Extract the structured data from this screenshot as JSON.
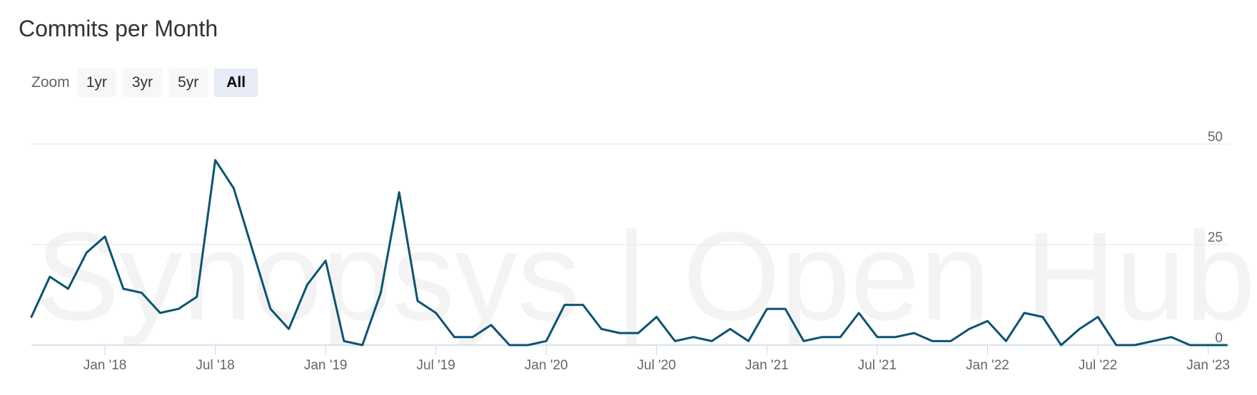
{
  "chart_title": "Commits per Month",
  "zoom": {
    "label": "Zoom",
    "options": [
      "1yr",
      "3yr",
      "5yr",
      "All"
    ],
    "selected": "All"
  },
  "watermark": "Synopsys | Open Hub",
  "colors": {
    "line": "#0b5371",
    "grid": "#e6e6e6",
    "axis": "#ccd6eb",
    "button_active": "#e6ebf5",
    "button": "#f7f7f7"
  },
  "chart_data": {
    "type": "line",
    "title": "Commits per Month",
    "x_start": "2017-09",
    "series": [
      {
        "values": [
          7,
          17,
          14,
          23,
          27,
          14,
          13,
          8,
          9,
          12,
          46,
          39,
          24,
          9,
          4,
          15,
          21,
          1,
          0,
          13,
          38,
          11,
          8,
          2,
          2,
          5,
          0,
          0,
          1,
          10,
          10,
          4,
          3,
          3,
          7,
          1,
          2,
          1,
          4,
          1,
          9,
          9,
          1,
          2,
          2,
          8,
          2,
          2,
          3,
          1,
          1,
          4,
          6,
          1,
          8,
          7,
          0,
          4,
          7,
          0,
          0,
          1,
          2,
          0,
          0,
          0
        ]
      }
    ],
    "x_ticks": [
      "Jan '18",
      "Jul '18",
      "Jan '19",
      "Jul '19",
      "Jan '20",
      "Jul '20",
      "Jan '21",
      "Jul '21",
      "Jan '22",
      "Jul '22",
      "Jan '23"
    ],
    "y_ticks": [
      "0",
      "25",
      "50"
    ],
    "ylim": [
      0,
      50
    ],
    "grid": true,
    "legend": "none"
  }
}
